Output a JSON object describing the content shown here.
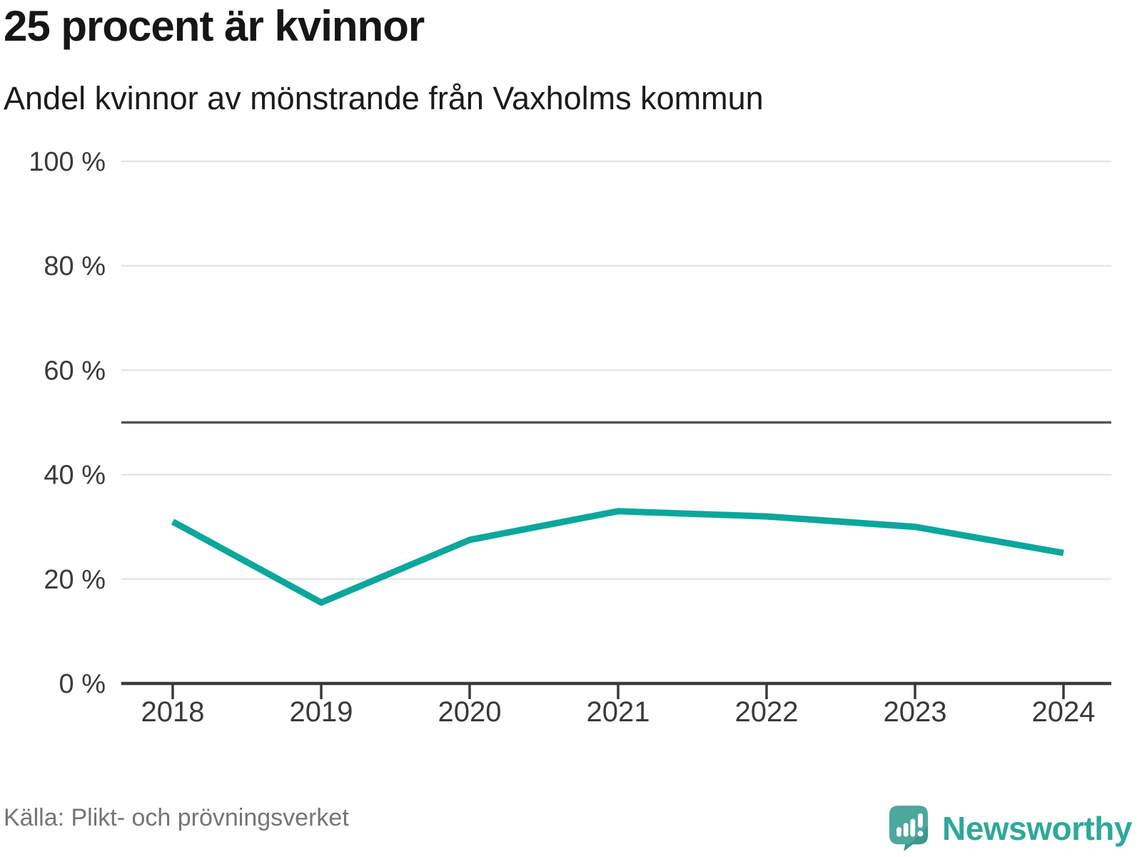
{
  "chart_data": {
    "type": "line",
    "title": "25 procent är kvinnor",
    "subtitle": "Andel kvinnor av mönstrande från Vaxholms kommun",
    "source": "Källa: Plikt- och prövningsverket",
    "categories": [
      "2018",
      "2019",
      "2020",
      "2021",
      "2022",
      "2023",
      "2024"
    ],
    "values": [
      31,
      15.5,
      27.5,
      33,
      32,
      30,
      25
    ],
    "ylim": [
      0,
      100
    ],
    "yticks": [
      0,
      20,
      40,
      60,
      80,
      100
    ],
    "ytick_suffix": " %",
    "reference_line": 50,
    "grid": true,
    "legend": "none",
    "colors": {
      "line": "#0ba79b",
      "grid": "#e1e1e1",
      "reference": "#55555d",
      "axis": "#3a3a3a",
      "tick_text": "#3a3a3a"
    }
  },
  "footer": {
    "brand": "Newsworthy",
    "brand_color": "#2ea89b",
    "logo_teal": "#4ca79d",
    "logo_teal_dark": "#3e968d"
  }
}
